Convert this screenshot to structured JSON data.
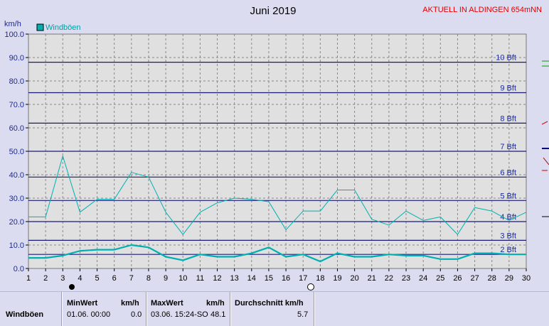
{
  "chart_data": {
    "type": "line",
    "title": "Juni 2019",
    "subtitle": "AKTUELL IN ALDINGEN 654mNN",
    "ylabel": "km/h",
    "ylim": [
      0,
      100
    ],
    "yticks": [
      "0.0",
      "10.0",
      "20.0",
      "30.0",
      "40.0",
      "50.0",
      "60.0",
      "70.0",
      "80.0",
      "90.0",
      "100.0"
    ],
    "xlim": [
      1,
      30
    ],
    "x": [
      1,
      2,
      3,
      4,
      5,
      6,
      7,
      8,
      9,
      10,
      11,
      12,
      13,
      14,
      15,
      16,
      17,
      18,
      19,
      20,
      21,
      22,
      23,
      24,
      25,
      26,
      27,
      28,
      29,
      30
    ],
    "series": [
      {
        "name": "Windböen",
        "role": "max",
        "color": "#00b0b0",
        "values": [
          22,
          22,
          48,
          24,
          29.5,
          29.5,
          41,
          39,
          24,
          14.5,
          24,
          28,
          30,
          29.5,
          28.5,
          16.5,
          24.5,
          24.5,
          33.5,
          33.5,
          21,
          18.5,
          24.5,
          20.5,
          22,
          14.5,
          26,
          24.5,
          20.5,
          24
        ]
      },
      {
        "role": "mean",
        "color": "#00b0b0",
        "values": [
          4.5,
          4.5,
          5.5,
          7.5,
          8,
          8,
          10,
          9,
          5,
          3.5,
          6,
          5,
          5,
          6.5,
          9,
          5,
          6,
          3,
          6.5,
          5,
          5,
          6,
          5.5,
          5.5,
          4,
          4,
          6.5,
          6.5,
          6,
          6
        ]
      }
    ],
    "bft_lines": [
      {
        "label": "2 Bft",
        "value": 6
      },
      {
        "label": "3 Bft",
        "value": 12
      },
      {
        "label": "4 Bft",
        "value": 20
      },
      {
        "label": "5 Bft",
        "value": 29
      },
      {
        "label": "6 Bft",
        "value": 39
      },
      {
        "label": "7 Bft",
        "value": 50
      },
      {
        "label": "8 Bft",
        "value": 62
      },
      {
        "label": "9 Bft",
        "value": 75
      },
      {
        "label": "10 Bft",
        "value": 88
      }
    ],
    "legend_position": "top-left",
    "grid": true,
    "colors": {
      "background": "#dcdcf0",
      "plot": "#e0e0e0",
      "bft_line": "#1a1a7a",
      "grid": "#888888",
      "series": "#00b0b0"
    }
  },
  "stats": {
    "row_label": "Windböen",
    "min_header": "MinWert",
    "min_unit": "km/h",
    "min_date": "01.06.  00:00",
    "min_value": "0.0",
    "max_header": "MaxWert",
    "max_unit": "km/h",
    "max_date": "03.06.  15:24-SO",
    "max_value": "48.1",
    "avg_header": "Durchschnitt km/h",
    "avg_value": "5.7"
  }
}
